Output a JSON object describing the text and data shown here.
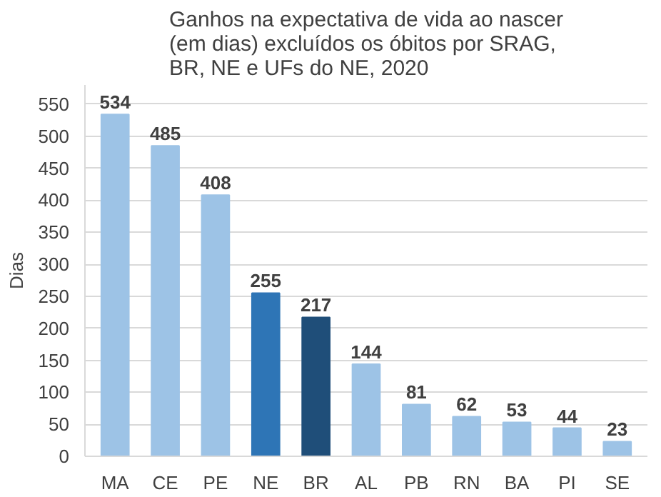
{
  "chart_data": {
    "type": "bar",
    "title": "Ganhos na expectativa de vida ao nascer\n(em dias) excluídos os óbitos por SRAG,\nBR, NE e UFs do NE, 2020",
    "ylabel": "Dias",
    "categories": [
      "MA",
      "CE",
      "PE",
      "NE",
      "BR",
      "AL",
      "PB",
      "RN",
      "BA",
      "PI",
      "SE"
    ],
    "values": [
      534,
      485,
      408,
      255,
      217,
      144,
      81,
      62,
      53,
      44,
      23
    ],
    "colors": [
      "#9dc3e6",
      "#9dc3e6",
      "#9dc3e6",
      "#2e75b6",
      "#1f4e79",
      "#9dc3e6",
      "#9dc3e6",
      "#9dc3e6",
      "#9dc3e6",
      "#9dc3e6",
      "#9dc3e6"
    ],
    "ylim": [
      0,
      580
    ],
    "yticks": [
      0,
      50,
      100,
      150,
      200,
      250,
      300,
      350,
      400,
      450,
      500,
      550
    ],
    "grid": "y",
    "data_labels": true
  }
}
